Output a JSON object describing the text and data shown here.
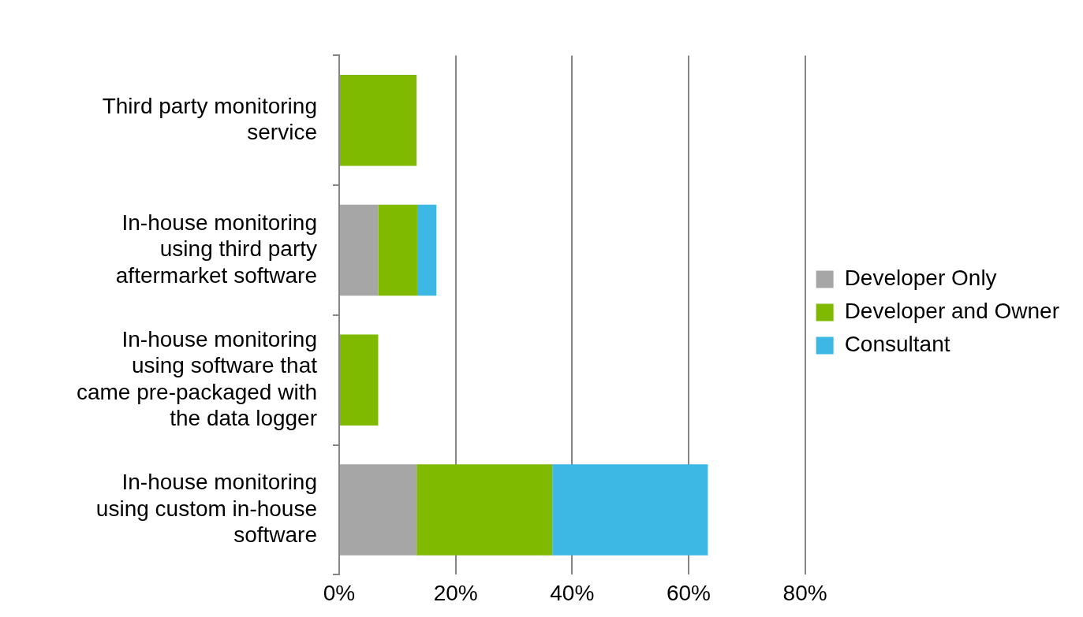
{
  "chart_data": {
    "type": "bar",
    "orientation": "horizontal",
    "stacked": true,
    "categories": [
      "Third party monitoring service",
      "In-house monitoring using third party aftermarket software",
      "In-house monitoring using software that came pre-packaged with the data logger",
      "In-house monitoring using custom in-house software"
    ],
    "series": [
      {
        "name": "Developer Only",
        "color": "#a6a6a6",
        "values": [
          0,
          6.7,
          0,
          13.3
        ]
      },
      {
        "name": "Developer and Owner",
        "color": "#7fba00",
        "values": [
          13.3,
          6.7,
          6.7,
          23.3
        ]
      },
      {
        "name": "Consultant",
        "color": "#3db7e4",
        "values": [
          0,
          3.3,
          0,
          26.7
        ]
      }
    ],
    "xlim": [
      0,
      80
    ],
    "xticks": [
      {
        "value": 0,
        "label": "0%"
      },
      {
        "value": 20,
        "label": "20%"
      },
      {
        "value": 40,
        "label": "40%"
      },
      {
        "value": 60,
        "label": "60%"
      },
      {
        "value": 80,
        "label": "80%"
      }
    ],
    "grid": "x",
    "legend": "right"
  }
}
